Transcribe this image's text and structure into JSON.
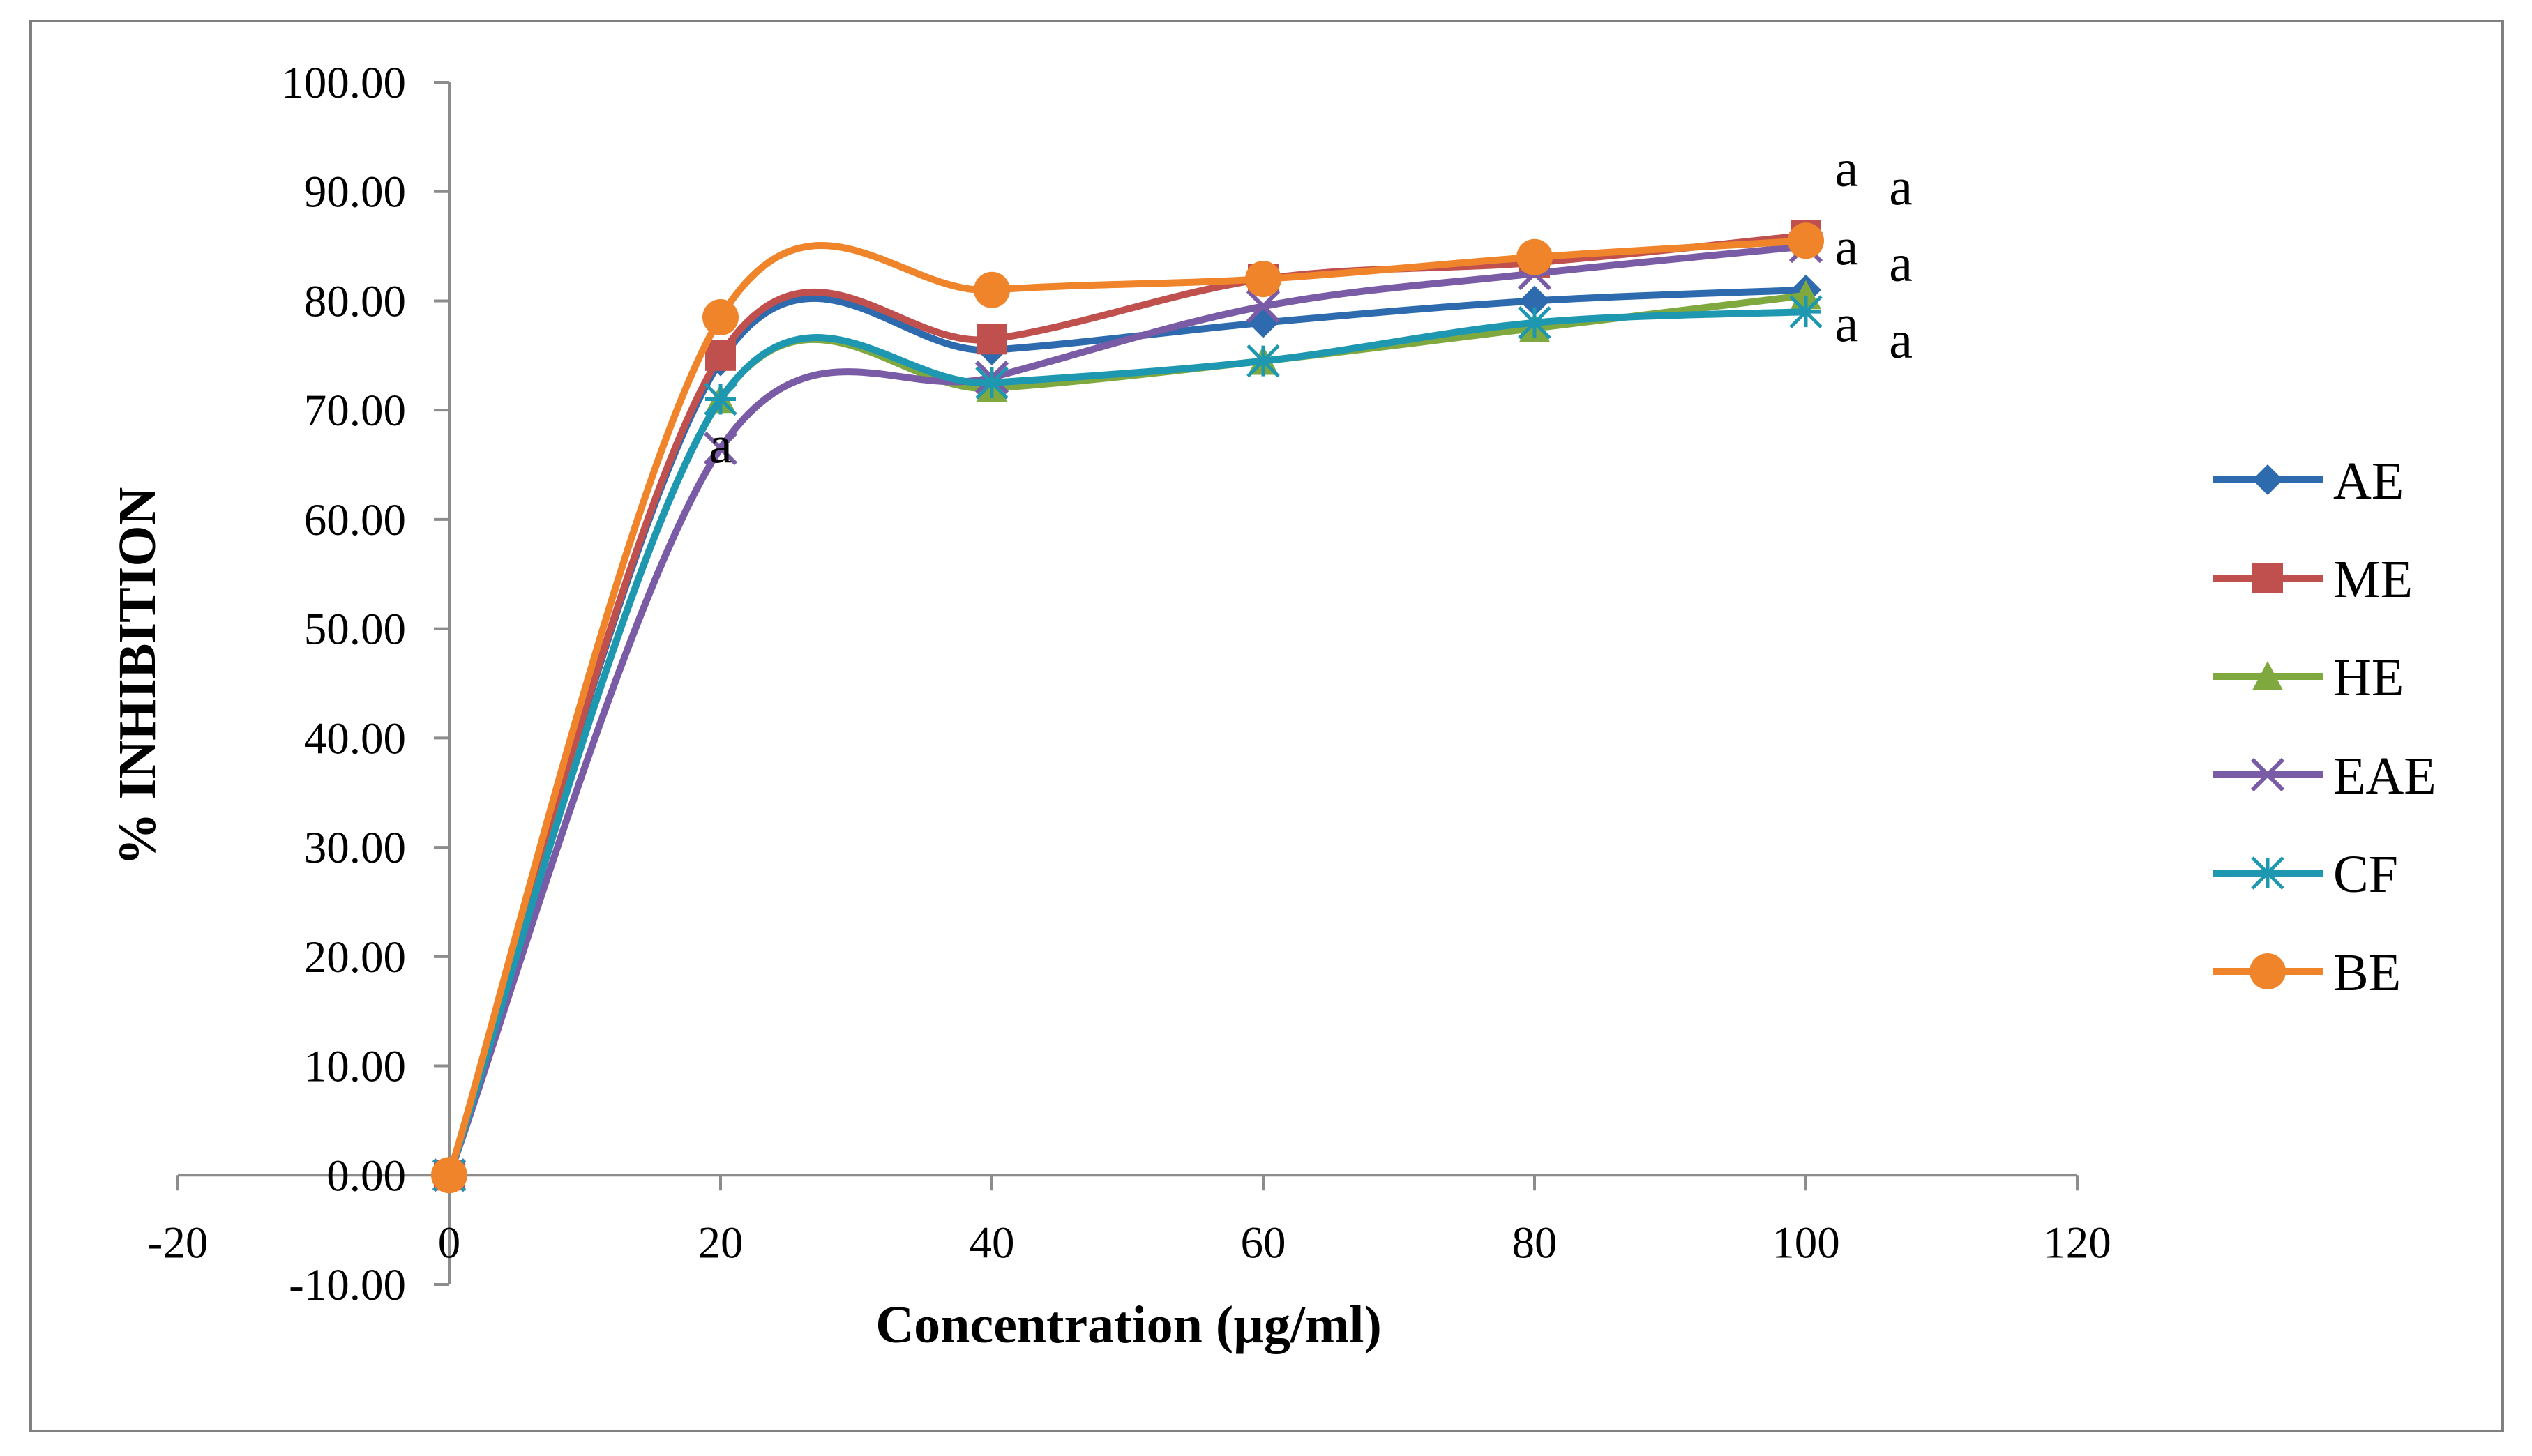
{
  "chart_data": {
    "type": "line",
    "smooth": true,
    "title": "",
    "xlabel": "Concentration (µg/ml)",
    "ylabel": "% INHIBITION",
    "xlim": [
      -20,
      120
    ],
    "ylim": [
      -10,
      100
    ],
    "x_ticks": [
      "-20",
      "0",
      "20",
      "40",
      "60",
      "80",
      "100",
      "120"
    ],
    "x_tick_values": [
      -20,
      0,
      20,
      40,
      60,
      80,
      100,
      120
    ],
    "y_ticks": [
      "-10.00",
      "0.00",
      "10.00",
      "20.00",
      "30.00",
      "40.00",
      "50.00",
      "60.00",
      "70.00",
      "80.00",
      "90.00",
      "100.00"
    ],
    "y_tick_values": [
      -10,
      0,
      10,
      20,
      30,
      40,
      50,
      60,
      70,
      80,
      90,
      100
    ],
    "x": [
      0,
      20,
      40,
      60,
      80,
      100
    ],
    "legend_position": "right",
    "series": [
      {
        "name": "AE",
        "color": "#2E6BAE",
        "marker": "diamond",
        "values": [
          0,
          74.5,
          75.5,
          78.0,
          80.0,
          81.0
        ]
      },
      {
        "name": "ME",
        "color": "#C0504D",
        "marker": "square",
        "values": [
          0,
          75.0,
          76.5,
          82.0,
          83.5,
          86.0
        ]
      },
      {
        "name": "HE",
        "color": "#7FA83F",
        "marker": "triangle",
        "values": [
          0,
          71.0,
          72.0,
          74.5,
          77.5,
          80.5
        ]
      },
      {
        "name": "EAE",
        "color": "#7A5BA6",
        "marker": "x",
        "values": [
          0,
          66.5,
          73.0,
          79.5,
          82.5,
          85.0
        ]
      },
      {
        "name": "CF",
        "color": "#1E98B0",
        "marker": "star",
        "values": [
          0,
          71.0,
          72.5,
          74.5,
          78.0,
          79.0
        ]
      },
      {
        "name": "BE",
        "color": "#F0842A",
        "marker": "circle",
        "values": [
          0,
          78.5,
          81.0,
          82.0,
          84.0,
          85.5
        ]
      }
    ],
    "annotations": [
      {
        "text": "a",
        "x": 103,
        "y": 90.5
      },
      {
        "text": "a",
        "x": 107,
        "y": 88.8
      },
      {
        "text": "a",
        "x": 103,
        "y": 83.3
      },
      {
        "text": "a",
        "x": 107,
        "y": 81.8
      },
      {
        "text": "a",
        "x": 103,
        "y": 76.3
      },
      {
        "text": "a",
        "x": 107,
        "y": 74.8
      },
      {
        "text": "a",
        "x": 20,
        "y": 65.2
      }
    ]
  }
}
